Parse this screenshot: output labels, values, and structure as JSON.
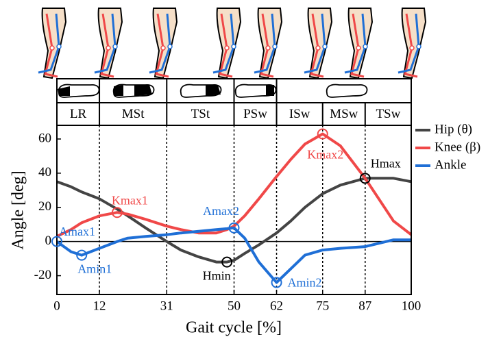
{
  "chart_data": {
    "type": "line",
    "x": [
      0,
      4,
      7,
      12,
      17,
      20,
      25,
      31,
      35,
      40,
      45,
      48,
      50,
      53,
      57,
      62,
      66,
      70,
      75,
      80,
      87,
      95,
      100
    ],
    "series": [
      {
        "name": "Hip (θ)",
        "color": "#444444",
        "values": [
          35,
          32,
          29,
          25,
          19,
          15,
          8,
          0,
          -5,
          -9,
          -12,
          -12,
          -11,
          -7,
          -2,
          5,
          12,
          20,
          28,
          33,
          37,
          37,
          35
        ]
      },
      {
        "name": "Knee (β)",
        "color": "#f04848",
        "values": [
          3,
          7,
          11,
          15,
          17,
          16,
          13,
          9,
          7,
          5,
          5,
          7,
          9,
          15,
          25,
          38,
          48,
          57,
          63,
          56,
          37,
          12,
          4
        ]
      },
      {
        "name": "Ankle",
        "color": "#1f6fd6",
        "values": [
          0,
          -6,
          -8,
          -4,
          0,
          2,
          3,
          4,
          5,
          6,
          7,
          7.5,
          8,
          2,
          -12,
          -24,
          -16,
          -8,
          -5,
          -4,
          -3,
          1,
          1
        ]
      }
    ],
    "xlabel": "Gait cycle [%]",
    "ylabel": "Angle [deg]",
    "xlim": [
      0,
      100
    ],
    "ylim": [
      -31,
      68
    ],
    "xticks": [
      0,
      12,
      31,
      50,
      62,
      75,
      87,
      100
    ],
    "yticks": [
      -20,
      0,
      20,
      40,
      60
    ],
    "phases": [
      "LR",
      "MSt",
      "TSt",
      "PSw",
      "ISw",
      "MSw",
      "TSw"
    ],
    "annotations": [
      {
        "label": "Amax1",
        "x": 0,
        "y": 0,
        "color": "#1f6fd6"
      },
      {
        "label": "Amin1",
        "x": 7,
        "y": -8,
        "color": "#1f6fd6"
      },
      {
        "label": "Kmax1",
        "x": 17,
        "y": 17,
        "color": "#f04848"
      },
      {
        "label": "Amax2",
        "x": 50,
        "y": 8,
        "color": "#1f6fd6"
      },
      {
        "label": "Hmin",
        "x": 48,
        "y": -12,
        "color": "#000000"
      },
      {
        "label": "Amin2",
        "x": 62,
        "y": -24,
        "color": "#1f6fd6"
      },
      {
        "label": "Kmax2",
        "x": 75,
        "y": 63,
        "color": "#f04848"
      },
      {
        "label": "Hmax",
        "x": 87,
        "y": 37,
        "color": "#000000"
      }
    ]
  }
}
